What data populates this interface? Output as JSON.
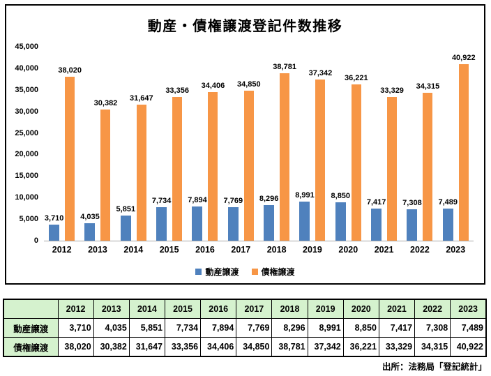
{
  "chart": {
    "title": "動産・債権譲渡登記件数推移"
  },
  "chart_data": {
    "type": "bar",
    "title": "動産・債権譲渡登記件数推移",
    "categories": [
      "2012",
      "2013",
      "2014",
      "2015",
      "2016",
      "2017",
      "2018",
      "2019",
      "2020",
      "2021",
      "2022",
      "2023"
    ],
    "series": [
      {
        "name": "動産譲渡",
        "color": "#4F81BD",
        "values": [
          3710,
          4035,
          5851,
          7734,
          7894,
          7769,
          8296,
          8991,
          8850,
          7417,
          7308,
          7489
        ]
      },
      {
        "name": "債権譲渡",
        "color": "#F79646",
        "values": [
          38020,
          30382,
          31647,
          33356,
          34406,
          34850,
          38781,
          37342,
          36221,
          33329,
          34315,
          40922
        ]
      }
    ],
    "xlabel": "",
    "ylabel": "",
    "ylim": [
      0,
      45000
    ],
    "ytick_step": 5000,
    "grid": false,
    "legend_position": "bottom",
    "data_labels": true
  },
  "colors": {
    "series1": "#4F81BD",
    "series2": "#F79646",
    "table_header_bg": "#d5f2ce",
    "axis_line": "#a6a6a6"
  },
  "source": "出所：法務局「登記統計」"
}
